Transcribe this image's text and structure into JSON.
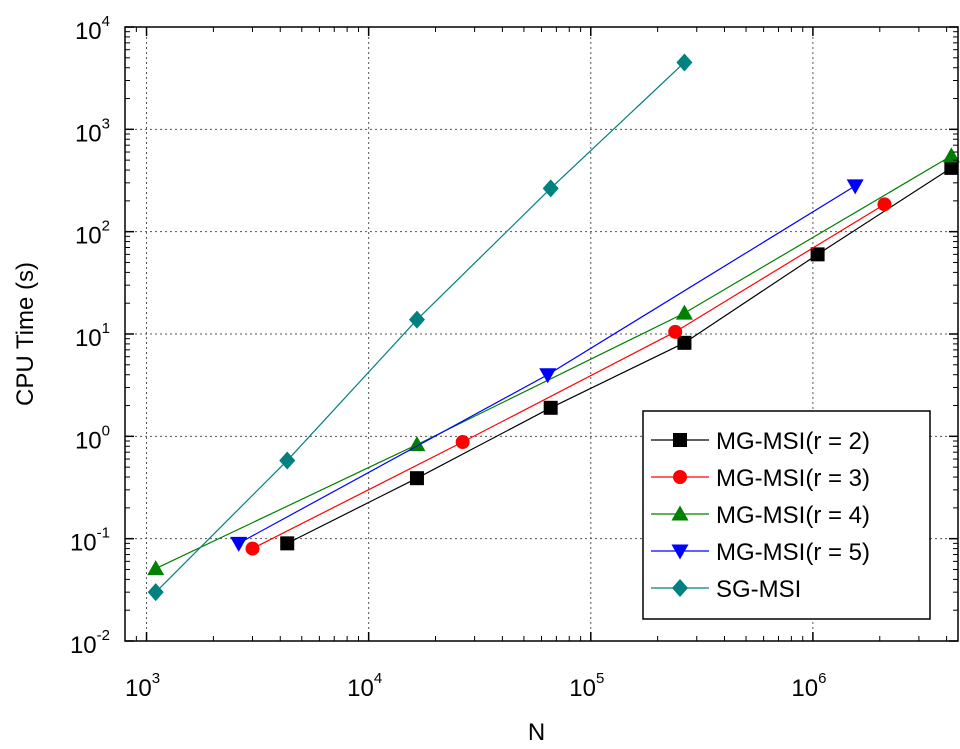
{
  "chart_data": {
    "type": "scatter",
    "xlabel": "N",
    "ylabel": "CPU Time (s)",
    "xscale": "log",
    "yscale": "log",
    "xlim": [
      800,
      4500000
    ],
    "ylim": [
      0.01,
      10000
    ],
    "x_ticks": [
      {
        "value": 1000,
        "base": "10",
        "exp": "3"
      },
      {
        "value": 10000,
        "base": "10",
        "exp": "4"
      },
      {
        "value": 100000,
        "base": "10",
        "exp": "5"
      },
      {
        "value": 1000000,
        "base": "10",
        "exp": "6"
      }
    ],
    "y_ticks": [
      {
        "value": 0.01,
        "base": "10",
        "exp": "-2"
      },
      {
        "value": 0.1,
        "base": "10",
        "exp": "-1"
      },
      {
        "value": 1,
        "base": "10",
        "exp": "0"
      },
      {
        "value": 10,
        "base": "10",
        "exp": "1"
      },
      {
        "value": 100,
        "base": "10",
        "exp": "2"
      },
      {
        "value": 1000,
        "base": "10",
        "exp": "3"
      },
      {
        "value": 10000,
        "base": "10",
        "exp": "4"
      }
    ],
    "grid": true,
    "legend_position": "bottom-right",
    "series": [
      {
        "name": "MG-MSI(r = 2)",
        "color": "#000000",
        "marker": "square",
        "points": [
          [
            4300,
            0.09
          ],
          [
            16500,
            0.39
          ],
          [
            66000,
            1.9
          ],
          [
            264000,
            8.2
          ],
          [
            1050000,
            60
          ],
          [
            4200000,
            420
          ]
        ]
      },
      {
        "name": "MG-MSI(r = 3)",
        "color": "#ff0000",
        "marker": "circle",
        "points": [
          [
            3000,
            0.08
          ],
          [
            26500,
            0.88
          ],
          [
            240000,
            10.5
          ],
          [
            2100000,
            185
          ]
        ]
      },
      {
        "name": "MG-MSI(r = 4)",
        "color": "#008000",
        "marker": "triangle-up",
        "points": [
          [
            1100,
            0.051
          ],
          [
            16500,
            0.83
          ],
          [
            264000,
            16
          ],
          [
            4200000,
            550
          ]
        ]
      },
      {
        "name": "MG-MSI(r = 5)",
        "color": "#0000ff",
        "marker": "triangle-down",
        "points": [
          [
            2600,
            0.09
          ],
          [
            64000,
            4.0
          ],
          [
            1550000,
            280
          ]
        ]
      },
      {
        "name": "SG-MSI",
        "color": "#008080",
        "marker": "diamond",
        "points": [
          [
            1100,
            0.03
          ],
          [
            4300,
            0.58
          ],
          [
            16500,
            13.8
          ],
          [
            66000,
            265
          ],
          [
            264000,
            4500
          ]
        ]
      }
    ]
  }
}
